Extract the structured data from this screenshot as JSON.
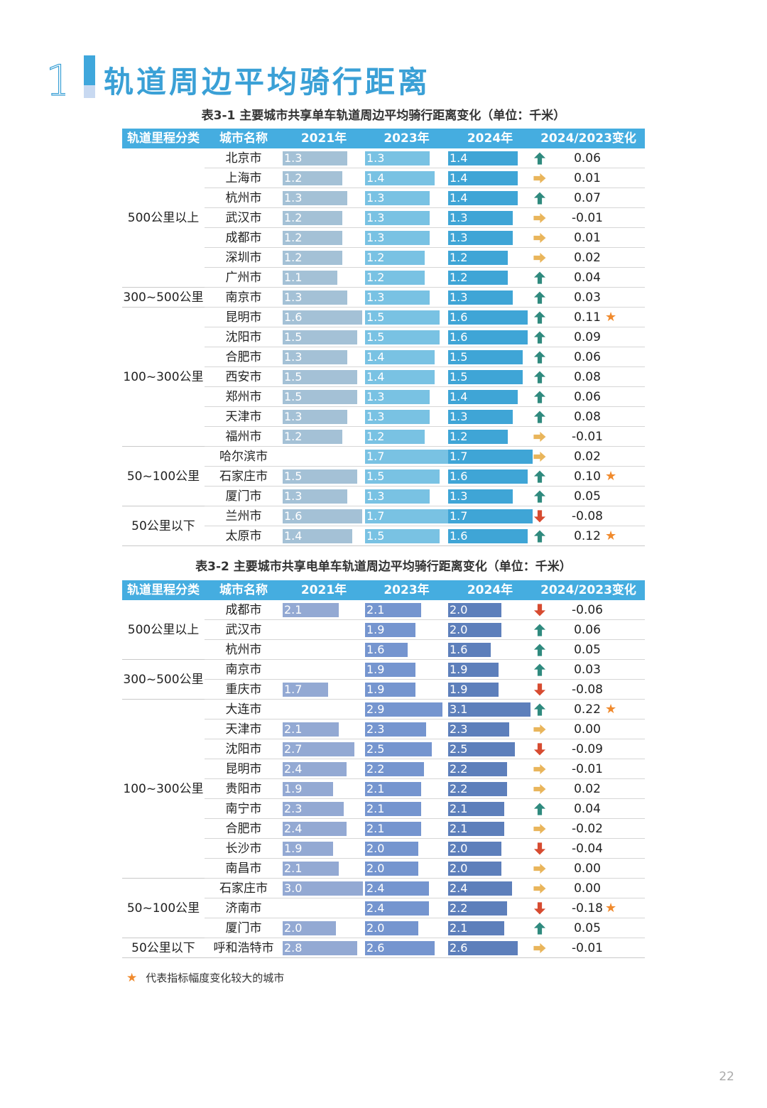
{
  "section_number": "1",
  "title": "轨道周边平均骑行距离",
  "legend_star": "★",
  "legend_text": "代表指标幅度变化较大的城市",
  "page_number": "22",
  "colors": {
    "t1_2021": "#a4c1d6",
    "t1_2023": "#79c2e3",
    "t1_2024": "#3fa5d6",
    "t2_2021": "#93a9d3",
    "t2_2023": "#7595cf",
    "t2_2024": "#5d7fbb",
    "up": "#2f8a7e",
    "right": "#e9b55b",
    "down": "#d74b30",
    "star": "#f08a2d"
  },
  "table1": {
    "caption": "表3-1 主要城市共享单车轨道周边平均骑行距离变化（单位：千米）",
    "headers": [
      "轨道里程分类",
      "城市名称",
      "2021年",
      "2023年",
      "2024年",
      "2024/2023变化"
    ],
    "groups": [
      {
        "label": "500公里以上",
        "rows": 7
      },
      {
        "label": "300~500公里",
        "rows": 1
      },
      {
        "label": "100~300公里",
        "rows": 7
      },
      {
        "label": "50~100公里",
        "rows": 3
      },
      {
        "label": "50公里以下",
        "rows": 2
      }
    ],
    "rows": [
      {
        "city": "北京市",
        "v2021": "1.3",
        "v2023": "1.3",
        "v2024": "1.4",
        "trend": "up",
        "change": "0.06",
        "star": false
      },
      {
        "city": "上海市",
        "v2021": "1.2",
        "v2023": "1.4",
        "v2024": "1.4",
        "trend": "right",
        "change": "0.01",
        "star": false
      },
      {
        "city": "杭州市",
        "v2021": "1.3",
        "v2023": "1.3",
        "v2024": "1.4",
        "trend": "up",
        "change": "0.07",
        "star": false
      },
      {
        "city": "武汉市",
        "v2021": "1.2",
        "v2023": "1.3",
        "v2024": "1.3",
        "trend": "right",
        "change": "-0.01",
        "star": false
      },
      {
        "city": "成都市",
        "v2021": "1.2",
        "v2023": "1.3",
        "v2024": "1.3",
        "trend": "right",
        "change": "0.01",
        "star": false
      },
      {
        "city": "深圳市",
        "v2021": "1.2",
        "v2023": "1.2",
        "v2024": "1.2",
        "trend": "right",
        "change": "0.02",
        "star": false
      },
      {
        "city": "广州市",
        "v2021": "1.1",
        "v2023": "1.2",
        "v2024": "1.2",
        "trend": "up",
        "change": "0.04",
        "star": false
      },
      {
        "city": "南京市",
        "v2021": "1.3",
        "v2023": "1.3",
        "v2024": "1.3",
        "trend": "up",
        "change": "0.03",
        "star": false
      },
      {
        "city": "昆明市",
        "v2021": "1.6",
        "v2023": "1.5",
        "v2024": "1.6",
        "trend": "up",
        "change": "0.11",
        "star": true
      },
      {
        "city": "沈阳市",
        "v2021": "1.5",
        "v2023": "1.5",
        "v2024": "1.6",
        "trend": "up",
        "change": "0.09",
        "star": false
      },
      {
        "city": "合肥市",
        "v2021": "1.3",
        "v2023": "1.4",
        "v2024": "1.5",
        "trend": "up",
        "change": "0.06",
        "star": false
      },
      {
        "city": "西安市",
        "v2021": "1.5",
        "v2023": "1.4",
        "v2024": "1.5",
        "trend": "up",
        "change": "0.08",
        "star": false
      },
      {
        "city": "郑州市",
        "v2021": "1.5",
        "v2023": "1.3",
        "v2024": "1.4",
        "trend": "up",
        "change": "0.06",
        "star": false
      },
      {
        "city": "天津市",
        "v2021": "1.3",
        "v2023": "1.3",
        "v2024": "1.3",
        "trend": "up",
        "change": "0.08",
        "star": false
      },
      {
        "city": "福州市",
        "v2021": "1.2",
        "v2023": "1.2",
        "v2024": "1.2",
        "trend": "right",
        "change": "-0.01",
        "star": false
      },
      {
        "city": "哈尔滨市",
        "v2021": "",
        "v2023": "1.7",
        "v2024": "1.7",
        "trend": "right",
        "change": "0.02",
        "star": false
      },
      {
        "city": "石家庄市",
        "v2021": "1.5",
        "v2023": "1.5",
        "v2024": "1.6",
        "trend": "up",
        "change": "0.10",
        "star": true
      },
      {
        "city": "厦门市",
        "v2021": "1.3",
        "v2023": "1.3",
        "v2024": "1.3",
        "trend": "up",
        "change": "0.05",
        "star": false
      },
      {
        "city": "兰州市",
        "v2021": "1.6",
        "v2023": "1.7",
        "v2024": "1.7",
        "trend": "down",
        "change": "-0.08",
        "star": false
      },
      {
        "city": "太原市",
        "v2021": "1.4",
        "v2023": "1.5",
        "v2024": "1.6",
        "trend": "up",
        "change": "0.12",
        "star": true
      }
    ]
  },
  "table2": {
    "caption": "表3-2 主要城市共享电单车轨道周边平均骑行距离变化（单位：千米）",
    "headers": [
      "轨道里程分类",
      "城市名称",
      "2021年",
      "2023年",
      "2024年",
      "2024/2023变化"
    ],
    "groups": [
      {
        "label": "500公里以上",
        "rows": 3
      },
      {
        "label": "300~500公里",
        "rows": 2
      },
      {
        "label": "100~300公里",
        "rows": 9
      },
      {
        "label": "50~100公里",
        "rows": 3
      },
      {
        "label": "50公里以下",
        "rows": 1
      }
    ],
    "rows": [
      {
        "city": "成都市",
        "v2021": "2.1",
        "v2023": "2.1",
        "v2024": "2.0",
        "trend": "down",
        "change": "-0.06",
        "star": false
      },
      {
        "city": "武汉市",
        "v2021": "",
        "v2023": "1.9",
        "v2024": "2.0",
        "trend": "up",
        "change": "0.06",
        "star": false
      },
      {
        "city": "杭州市",
        "v2021": "",
        "v2023": "1.6",
        "v2024": "1.6",
        "trend": "up",
        "change": "0.05",
        "star": false
      },
      {
        "city": "南京市",
        "v2021": "",
        "v2023": "1.9",
        "v2024": "1.9",
        "trend": "up",
        "change": "0.03",
        "star": false
      },
      {
        "city": "重庆市",
        "v2021": "1.7",
        "v2023": "1.9",
        "v2024": "1.9",
        "trend": "down",
        "change": "-0.08",
        "star": false
      },
      {
        "city": "大连市",
        "v2021": "",
        "v2023": "2.9",
        "v2024": "3.1",
        "trend": "up",
        "change": "0.22",
        "star": true
      },
      {
        "city": "天津市",
        "v2021": "2.1",
        "v2023": "2.3",
        "v2024": "2.3",
        "trend": "right",
        "change": "0.00",
        "star": false
      },
      {
        "city": "沈阳市",
        "v2021": "2.7",
        "v2023": "2.5",
        "v2024": "2.5",
        "trend": "down",
        "change": "-0.09",
        "star": false
      },
      {
        "city": "昆明市",
        "v2021": "2.4",
        "v2023": "2.2",
        "v2024": "2.2",
        "trend": "right",
        "change": "-0.01",
        "star": false
      },
      {
        "city": "贵阳市",
        "v2021": "1.9",
        "v2023": "2.1",
        "v2024": "2.2",
        "trend": "right",
        "change": "0.02",
        "star": false
      },
      {
        "city": "南宁市",
        "v2021": "2.3",
        "v2023": "2.1",
        "v2024": "2.1",
        "trend": "up",
        "change": "0.04",
        "star": false
      },
      {
        "city": "合肥市",
        "v2021": "2.4",
        "v2023": "2.1",
        "v2024": "2.1",
        "trend": "right",
        "change": "-0.02",
        "star": false
      },
      {
        "city": "长沙市",
        "v2021": "1.9",
        "v2023": "2.0",
        "v2024": "2.0",
        "trend": "down",
        "change": "-0.04",
        "star": false
      },
      {
        "city": "南昌市",
        "v2021": "2.1",
        "v2023": "2.0",
        "v2024": "2.0",
        "trend": "right",
        "change": "0.00",
        "star": false
      },
      {
        "city": "石家庄市",
        "v2021": "3.0",
        "v2023": "2.4",
        "v2024": "2.4",
        "trend": "right",
        "change": "0.00",
        "star": false
      },
      {
        "city": "济南市",
        "v2021": "",
        "v2023": "2.4",
        "v2024": "2.2",
        "trend": "down",
        "change": "-0.18",
        "star": true
      },
      {
        "city": "厦门市",
        "v2021": "2.0",
        "v2023": "2.0",
        "v2024": "2.1",
        "trend": "up",
        "change": "0.05",
        "star": false
      },
      {
        "city": "呼和浩特市",
        "v2021": "2.8",
        "v2023": "2.6",
        "v2024": "2.6",
        "trend": "right",
        "change": "-0.01",
        "star": false
      }
    ]
  }
}
